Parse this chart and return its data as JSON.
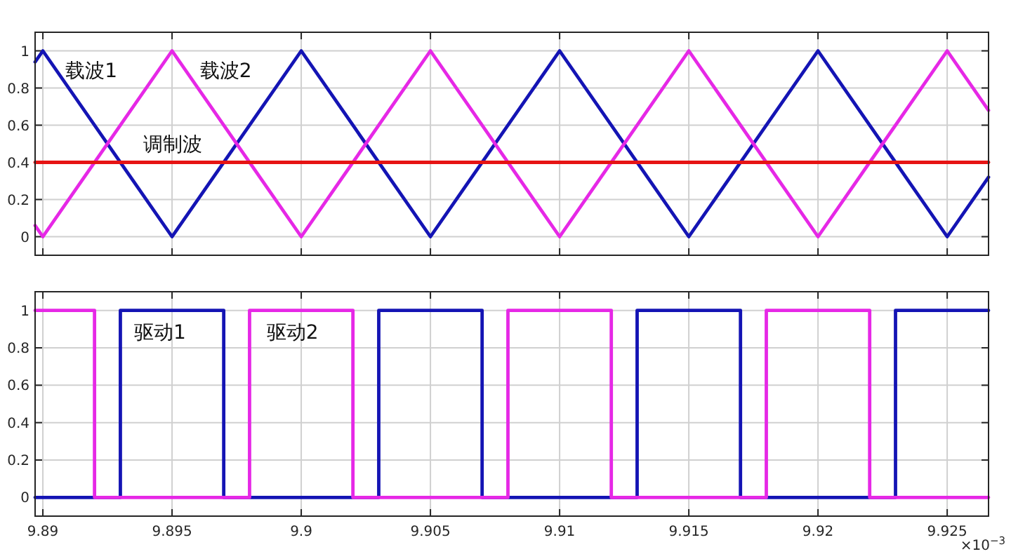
{
  "chart_data": [
    {
      "type": "line",
      "xlim": [
        9.8897,
        9.9266
      ],
      "ylim": [
        -0.1,
        1.1
      ],
      "xticks": [
        9.89,
        9.895,
        9.9,
        9.905,
        9.91,
        9.915,
        9.92,
        9.925
      ],
      "yticks": [
        0,
        0.2,
        0.4,
        0.6,
        0.8,
        1
      ],
      "grid": true,
      "tick_labels": "y",
      "line_style": "solid",
      "series": [
        {
          "name": "载波1",
          "color": "#1414b4",
          "x": [
            9.8897,
            9.89,
            9.895,
            9.9,
            9.905,
            9.91,
            9.915,
            9.92,
            9.925,
            9.9266
          ],
          "values": [
            0.94,
            1,
            0,
            1,
            0,
            1,
            0,
            1,
            0,
            0.32
          ]
        },
        {
          "name": "载波2",
          "color": "#e628e6",
          "x": [
            9.8897,
            9.89,
            9.895,
            9.9,
            9.905,
            9.91,
            9.915,
            9.92,
            9.925,
            9.9266
          ],
          "values": [
            0.06,
            0,
            1,
            0,
            1,
            0,
            1,
            0,
            1,
            0.68
          ]
        },
        {
          "name": "调制波",
          "color": "#e61414",
          "x": [
            9.8897,
            9.9266
          ],
          "values": [
            0.4,
            0.4
          ]
        }
      ]
    },
    {
      "type": "step",
      "xlim": [
        9.8897,
        9.9266
      ],
      "ylim": [
        -0.1,
        1.1
      ],
      "xticks": [
        9.89,
        9.895,
        9.9,
        9.905,
        9.91,
        9.915,
        9.92,
        9.925
      ],
      "yticks": [
        0,
        0.2,
        0.4,
        0.6,
        0.8,
        1
      ],
      "grid": true,
      "line_style": "solid",
      "series": [
        {
          "name": "驱动1",
          "color": "#1414b4",
          "x": [
            9.8897,
            9.893,
            9.897,
            9.903,
            9.907,
            9.913,
            9.917,
            9.923,
            9.9266
          ],
          "values": [
            0,
            1,
            0,
            1,
            0,
            1,
            0,
            1,
            1
          ]
        },
        {
          "name": "驱动2",
          "color": "#e628e6",
          "x": [
            9.8897,
            9.892,
            9.898,
            9.902,
            9.908,
            9.912,
            9.918,
            9.922,
            9.9266
          ],
          "values": [
            1,
            0,
            1,
            0,
            1,
            0,
            1,
            0,
            0
          ]
        }
      ],
      "annotations": [
        "×10$^{−3}$"
      ]
    }
  ]
}
